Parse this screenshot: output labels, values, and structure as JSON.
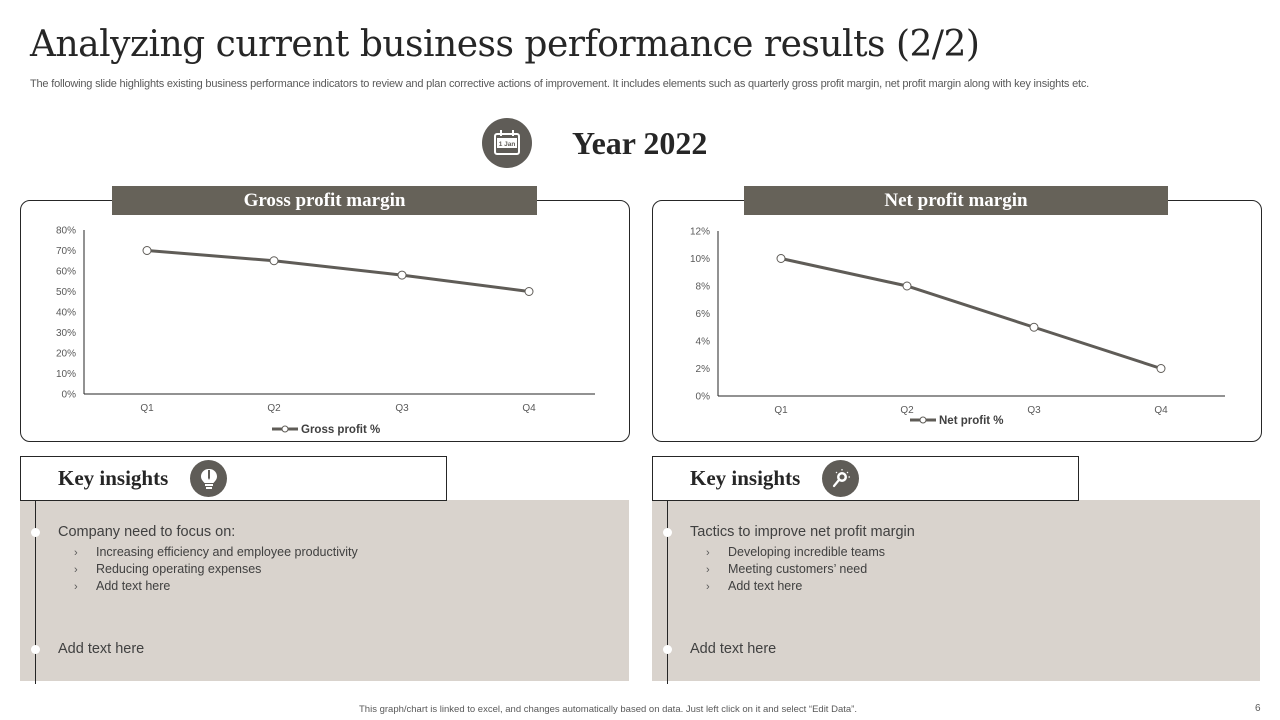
{
  "slide": {
    "title": "Analyzing current business performance results (2/2)",
    "subtitle": "The following slide highlights existing business performance indicators to review and plan corrective actions of improvement. It includes elements such as quarterly gross profit margin, net profit margin along with key insights etc.",
    "year_label": "Year 2022",
    "calendar_icon_text": "1 Jan",
    "footnote": "This graph/chart is linked to excel, and changes automatically based on data. Just left click on it and select “Edit Data”.",
    "page_number": "6"
  },
  "colors": {
    "header_fill": "#666259",
    "icon_circle": "#5f5c57",
    "line_color": "#5f5c57",
    "insight_bg": "#d9d3cd",
    "title_text": "#262626"
  },
  "charts": {
    "gross": {
      "header": "Gross profit margin"
    },
    "net": {
      "header": "Net profit margin"
    }
  },
  "chart_data": [
    {
      "type": "line",
      "title": "Gross profit margin",
      "categories": [
        "Q1",
        "Q2",
        "Q3",
        "Q4"
      ],
      "series": [
        {
          "name": "Gross profit %",
          "values": [
            70,
            65,
            58,
            50
          ]
        }
      ],
      "y_ticks": [
        "0%",
        "10%",
        "20%",
        "30%",
        "40%",
        "50%",
        "60%",
        "70%",
        "80%"
      ],
      "xlabel": "",
      "ylabel": "",
      "ylim": [
        0,
        80
      ],
      "grid": false,
      "legend_position": "bottom",
      "marker": "hollow-circle"
    },
    {
      "type": "line",
      "title": "Net profit margin",
      "categories": [
        "Q1",
        "Q2",
        "Q3",
        "Q4"
      ],
      "series": [
        {
          "name": "Net profit %",
          "values": [
            10,
            8,
            5,
            2
          ]
        }
      ],
      "y_ticks": [
        "0%",
        "2%",
        "4%",
        "6%",
        "8%",
        "10%",
        "12%"
      ],
      "xlabel": "",
      "ylabel": "",
      "ylim": [
        0,
        12
      ],
      "grid": false,
      "legend_position": "bottom",
      "marker": "hollow-circle"
    }
  ],
  "insights": {
    "left": {
      "title": "Key insights",
      "icon": "lightbulb-pen-icon",
      "heading": "Company need to focus on:",
      "bullets": [
        "Increasing efficiency and employee productivity",
        "Reducing operating expenses",
        "Add text here"
      ],
      "footer": "Add text here"
    },
    "right": {
      "title": "Key insights",
      "icon": "lightbulb-magnifier-icon",
      "heading": "Tactics to improve net profit margin",
      "bullets": [
        "Developing  incredible teams",
        "Meeting customers’ need",
        "Add text here"
      ],
      "footer": "Add text here"
    },
    "bullet_glyph": "›"
  }
}
